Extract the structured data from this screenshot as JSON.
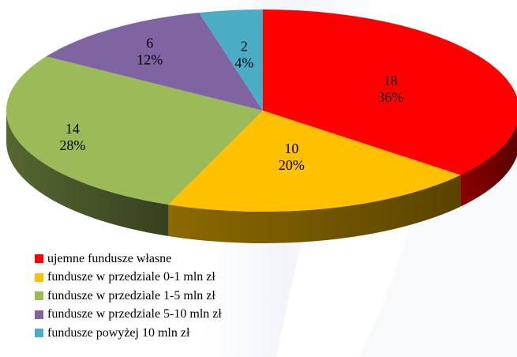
{
  "chart_data": {
    "type": "pie",
    "style": "3d",
    "slices": [
      {
        "label": "ujemne fundusze własne",
        "value": 18,
        "percent": "36%",
        "color": "#ff0000"
      },
      {
        "label": "fundusze w przedziale 0-1 mln zł",
        "value": 10,
        "percent": "20%",
        "color": "#ffc000"
      },
      {
        "label": "fundusze w przedziale 1-5 mln zł",
        "value": 14,
        "percent": "28%",
        "color": "#9bbb59"
      },
      {
        "label": "fundusze w przedziale 5-10 mln zł",
        "value": 6,
        "percent": "12%",
        "color": "#8064a2"
      },
      {
        "label": "fundusze powyżej 10 mln zł",
        "value": 2,
        "percent": "4%",
        "color": "#4bacc6"
      }
    ],
    "legend_position": "bottom-left"
  }
}
